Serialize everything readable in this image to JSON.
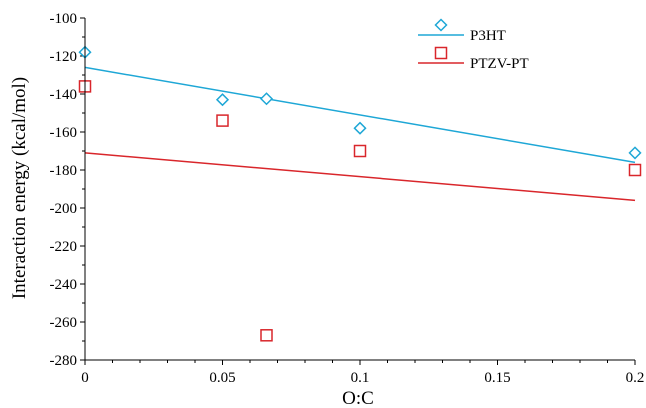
{
  "chart_data": {
    "type": "scatter",
    "xlabel": "O:C",
    "ylabel": "Interaction energy (kcal/mol)",
    "xlim": [
      0,
      0.2
    ],
    "ylim": [
      -280,
      -100
    ],
    "x_ticks": [
      "0",
      "0.05",
      "0.1",
      "0.15",
      "0.2"
    ],
    "y_ticks": [
      "-100",
      "-120",
      "-140",
      "-160",
      "-180",
      "-200",
      "-220",
      "-240",
      "-260",
      "-280"
    ],
    "grid": false,
    "legend_position": "top-right",
    "series": [
      {
        "name": "P3HT",
        "marker": "diamond",
        "color": "#1ea7d6",
        "x": [
          0,
          0.05,
          0.066,
          0.1,
          0.2
        ],
        "y": [
          -118,
          -143,
          -142.5,
          -158,
          -171
        ],
        "trendline": [
          [
            0,
            -126
          ],
          [
            0.2,
            -176
          ]
        ]
      },
      {
        "name": "PTZV-PT",
        "marker": "square",
        "color": "#d9262b",
        "x": [
          0,
          0.05,
          0.066,
          0.1,
          0.2
        ],
        "y": [
          -136,
          -154,
          -267,
          -170,
          -180
        ],
        "trendline": [
          [
            0,
            -171
          ],
          [
            0.2,
            -196
          ]
        ]
      }
    ]
  }
}
